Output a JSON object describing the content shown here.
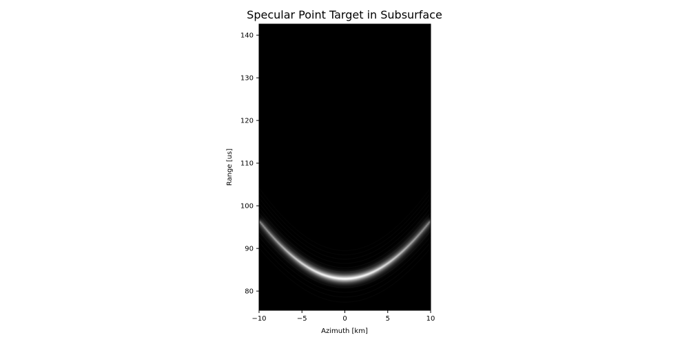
{
  "chart_data": {
    "type": "heatmap",
    "title": "Specular Point Target in Subsurface",
    "xlabel": "Azimuth [km]",
    "ylabel": "Range [us]",
    "xlim": [
      -10,
      10
    ],
    "ylim": [
      142.6,
      75.5
    ],
    "y_axis_inverted": true,
    "xticks": [
      -10,
      -5,
      0,
      5,
      10
    ],
    "yticks": [
      80,
      90,
      100,
      110,
      120,
      130,
      140
    ],
    "grid": false,
    "colormap": "gray",
    "background_color": "#000000",
    "feature": {
      "shape": "hyperbola",
      "apex_azimuth_km": 0,
      "apex_range_us": 82.9,
      "edge_range_us_at_azimuth_10km": 96.5,
      "peak_intensity": 1.0,
      "edge_intensity": 0.25
    }
  }
}
